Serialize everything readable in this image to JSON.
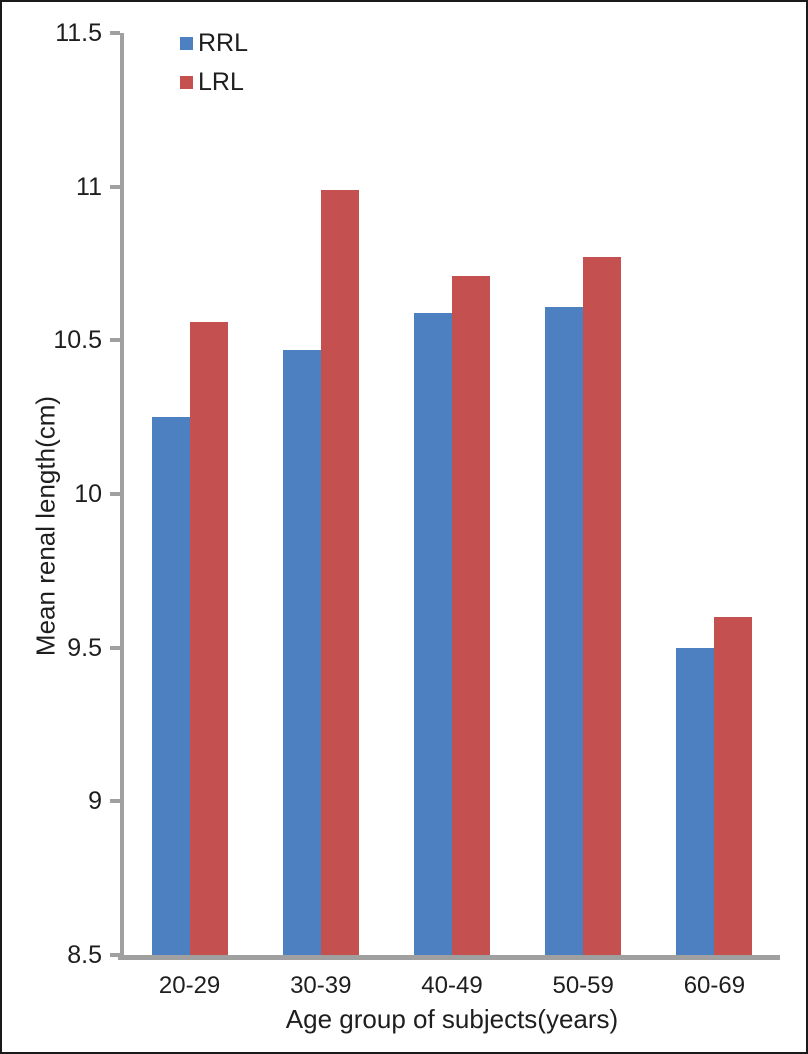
{
  "figure": {
    "background": "#ffffff",
    "border_color": "#1a1a1a",
    "axis_color": "#A0A0A0",
    "text_color": "#1e1e1e"
  },
  "chart_data": {
    "type": "bar",
    "title": "",
    "xlabel": "Age group of subjects(years)",
    "ylabel": "Mean renal length(cm)",
    "categories": [
      "20-29",
      "30-39",
      "40-49",
      "50-59",
      "60-69"
    ],
    "series": [
      {
        "name": "RRL",
        "color": "#4D80C0",
        "values": [
          10.25,
          10.47,
          10.59,
          10.61,
          9.5
        ]
      },
      {
        "name": "LRL",
        "color": "#C45150",
        "values": [
          10.56,
          10.99,
          10.71,
          10.77,
          9.6
        ]
      }
    ],
    "ylim": [
      8.5,
      11.5
    ],
    "yticks": [
      8.5,
      9,
      9.5,
      10,
      10.5,
      11,
      11.5
    ],
    "grid": false,
    "legend_position": "top-left-inside"
  }
}
